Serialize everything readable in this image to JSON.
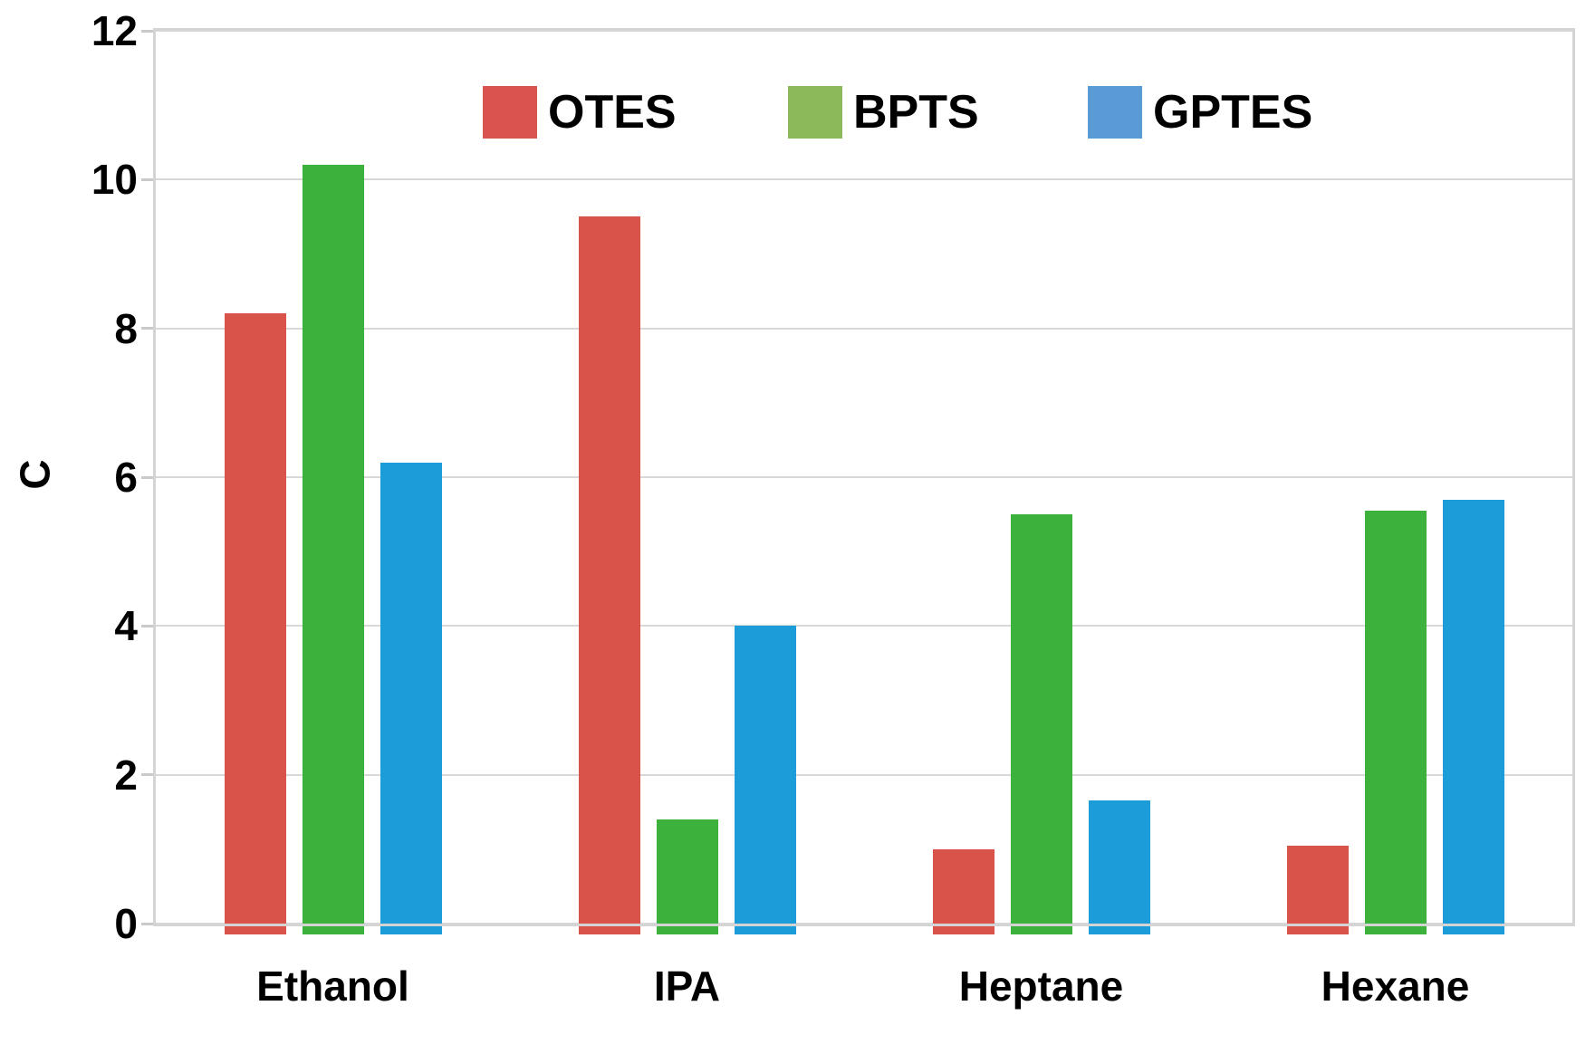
{
  "figure": {
    "background": "#ffffff"
  },
  "chart_data": {
    "type": "bar",
    "title": "",
    "ylabel": "C",
    "xlabel": "",
    "categories": [
      "Ethanol",
      "IPA",
      "Heptane",
      "Hexane"
    ],
    "series": [
      {
        "name": "OTES",
        "bar_color": "#d9534b",
        "legend_color": "#d9534f",
        "values": [
          8.2,
          9.5,
          1.0,
          1.05
        ]
      },
      {
        "name": "BPTS",
        "bar_color": "#3cb13c",
        "legend_color": "#8cba5a",
        "values": [
          10.2,
          1.4,
          5.5,
          5.55
        ]
      },
      {
        "name": "GPTES",
        "bar_color": "#1c9cd9",
        "legend_color": "#5b9bd5",
        "values": [
          6.2,
          4.0,
          1.65,
          5.7
        ]
      }
    ],
    "ylim": [
      0,
      12
    ],
    "yticks": [
      0,
      2,
      4,
      6,
      8,
      10,
      12
    ],
    "grid": true,
    "legend_position": "top-center",
    "colors": {
      "grid": "#d8d8d8",
      "axis_box": "#d4d4d4",
      "tick": "#c9c9c9",
      "text": "#000000"
    }
  }
}
